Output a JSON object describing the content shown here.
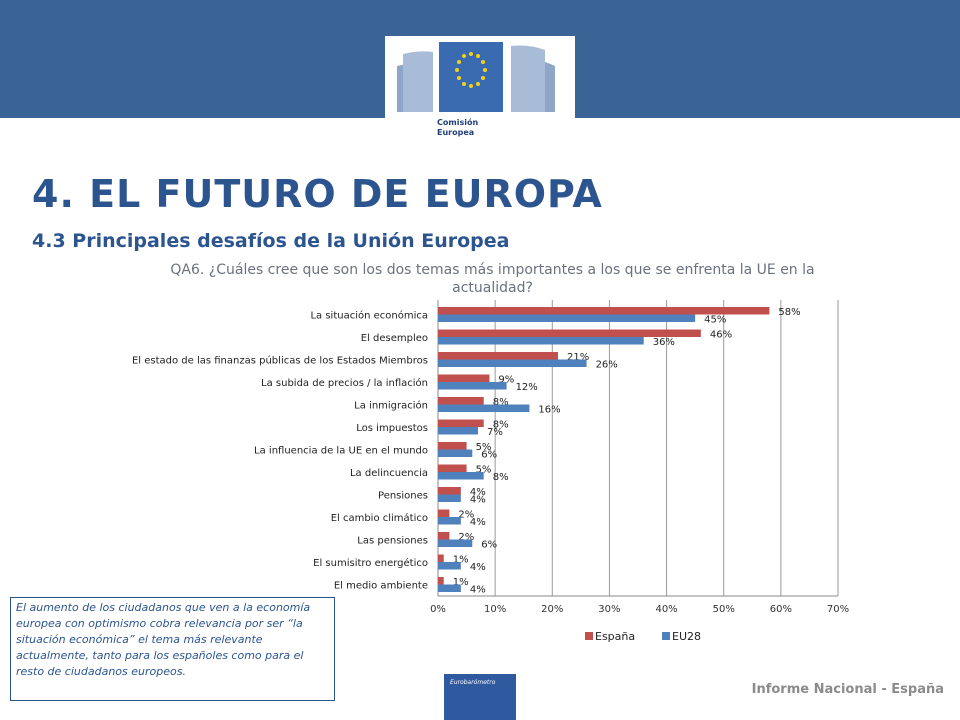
{
  "header": {
    "logo_text_line1": "Comisión",
    "logo_text_line2": "Europea",
    "title": "4. EL FUTURO DE EUROPA",
    "subtitle": "4.3 Principales desafíos de la Unión Europea",
    "question": "QA6. ¿Cuáles cree que son los dos temas más importantes a los que se enfrenta la UE en la actualidad?"
  },
  "chart_data": {
    "type": "bar",
    "orientation": "horizontal",
    "categories": [
      "La situación económica",
      "El desempleo",
      "El estado de las finanzas públicas de los Estados Miembros",
      "La subida de precios / la inflación",
      "La inmigración",
      "Los impuestos",
      "La influencia de la UE en el mundo",
      "La delincuencia",
      "Pensiones",
      "El cambio climático",
      "Las pensiones",
      "El sumisitro energético",
      "El medio ambiente"
    ],
    "series": [
      {
        "name": "España",
        "color": "#c0504d",
        "values": [
          58,
          46,
          21,
          9,
          8,
          8,
          5,
          5,
          4,
          2,
          2,
          1,
          1
        ]
      },
      {
        "name": "EU28",
        "color": "#4f81bd",
        "values": [
          45,
          36,
          26,
          12,
          16,
          7,
          6,
          8,
          4,
          4,
          6,
          4,
          4
        ]
      }
    ],
    "xlim": [
      0,
      70
    ],
    "xticks": [
      "0%",
      "10%",
      "20%",
      "30%",
      "40%",
      "50%",
      "60%",
      "70%"
    ],
    "value_suffix": "%",
    "grid": true,
    "legend": "bottom"
  },
  "note": {
    "text": "El aumento de los ciudadanos que ven a la economía europea con optimismo cobra relevancia por ser “la situación económica” el tema más relevante actualmente, tanto para los españoles como para el resto de ciudadanos europeos."
  },
  "footer": {
    "badge_text": "Eurobarómetro",
    "report": "Informe Nacional - España"
  }
}
